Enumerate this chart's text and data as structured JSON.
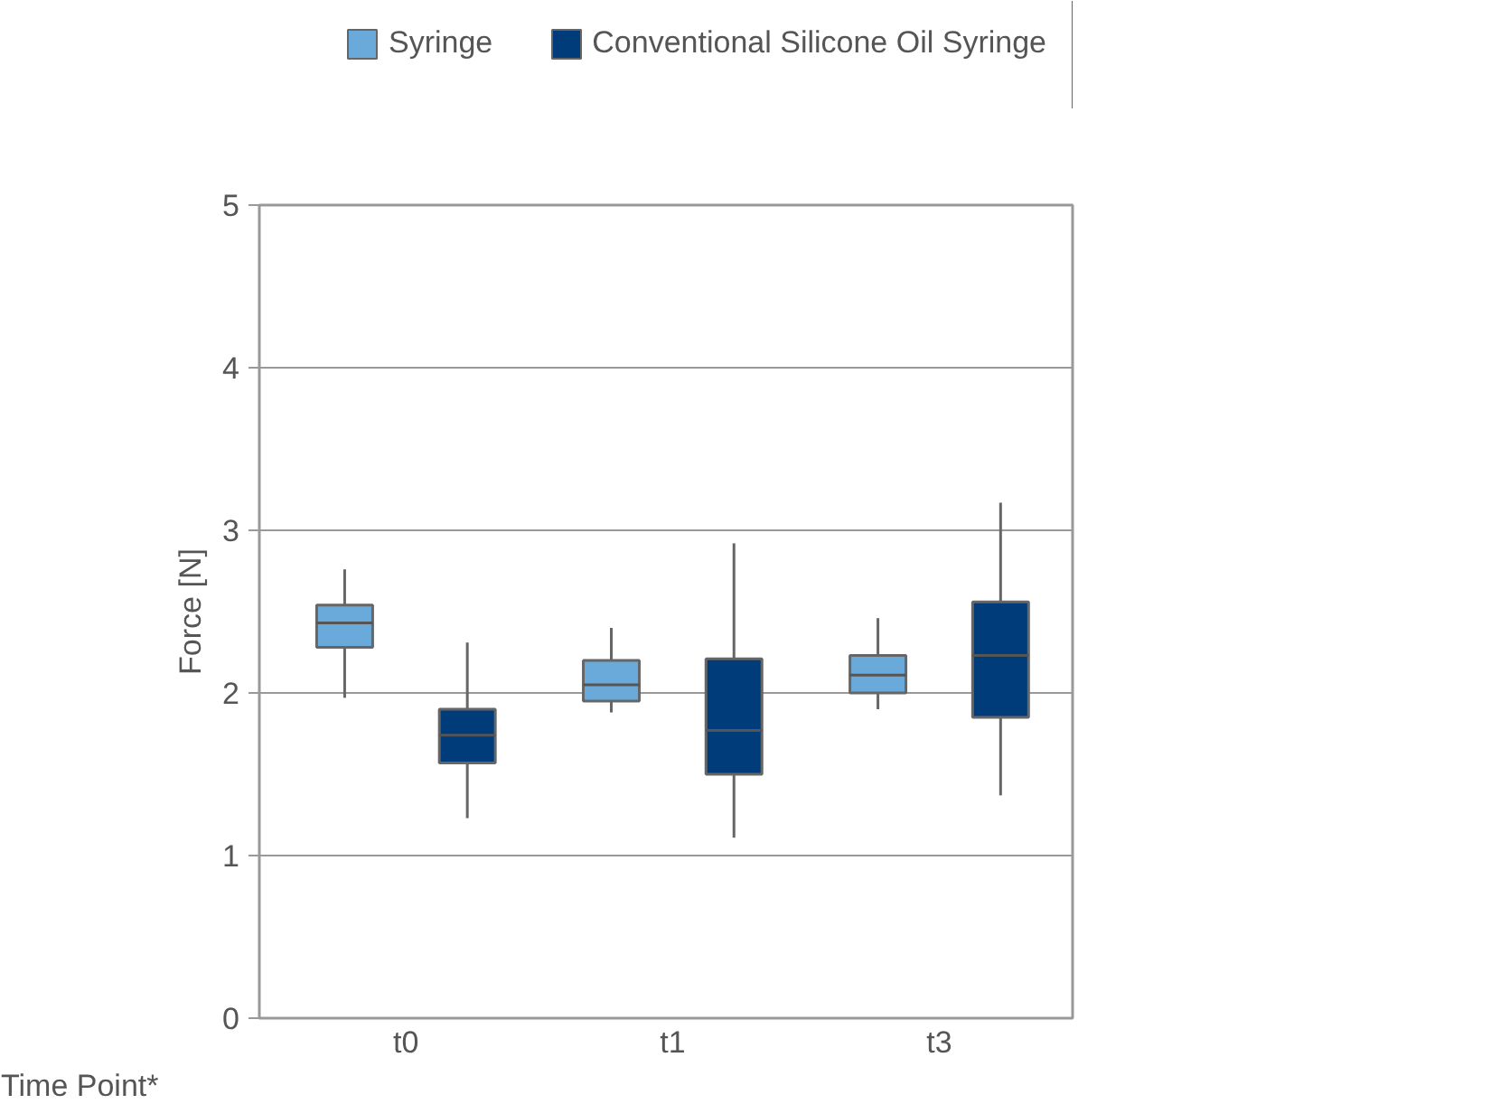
{
  "chart_data": {
    "type": "box",
    "xlabel": "Time Point*",
    "ylabel": "Force [N]",
    "categories": [
      "t0",
      "t1",
      "t3"
    ],
    "ylim": [
      0,
      5
    ],
    "yticks": [
      0,
      1,
      2,
      3,
      4,
      5
    ],
    "grid": "y",
    "legend": "top right",
    "series": [
      {
        "name": "Syringe",
        "color": "#6aaadb",
        "boxes": [
          {
            "low": 1.97,
            "q1": 2.28,
            "median": 2.43,
            "q3": 2.54,
            "high": 2.76
          },
          {
            "low": 1.88,
            "q1": 1.95,
            "median": 2.05,
            "q3": 2.2,
            "high": 2.4
          },
          {
            "low": 1.9,
            "q1": 2.0,
            "median": 2.11,
            "q3": 2.23,
            "high": 2.46
          }
        ]
      },
      {
        "name": "Conventional Silicone Oil Syringe",
        "color": "#003b7a",
        "boxes": [
          {
            "low": 1.23,
            "q1": 1.57,
            "median": 1.74,
            "q3": 1.9,
            "high": 2.31
          },
          {
            "low": 1.11,
            "q1": 1.5,
            "median": 1.77,
            "q3": 2.21,
            "high": 2.92
          },
          {
            "low": 1.37,
            "q1": 1.85,
            "median": 2.23,
            "q3": 2.56,
            "high": 3.17
          }
        ]
      }
    ]
  }
}
